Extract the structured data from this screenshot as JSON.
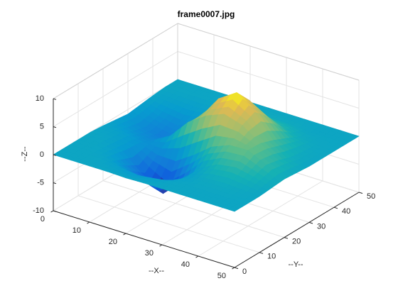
{
  "chart_data": {
    "type": "surface",
    "title": "frame0007.jpg",
    "xlabel": "--X--",
    "ylabel": "--Y--",
    "zlabel": "--Z--",
    "x": [
      0,
      5,
      10,
      15,
      20,
      25,
      30,
      35,
      40,
      45,
      50
    ],
    "y": [
      0,
      5,
      10,
      15,
      20,
      25,
      30,
      35,
      40,
      45,
      50
    ],
    "z": [
      [
        0,
        0,
        0,
        0,
        -0.1,
        0,
        0,
        0,
        0,
        0,
        0
      ],
      [
        0,
        0,
        -0.1,
        -0.6,
        -1.0,
        -0.6,
        -0.1,
        0,
        0,
        0,
        0
      ],
      [
        0,
        0,
        -0.6,
        -2.6,
        -4.2,
        -2.6,
        -0.6,
        0.2,
        0.4,
        0.2,
        0
      ],
      [
        0,
        -0.2,
        -1.1,
        -4.3,
        -6.9,
        -3.9,
        -0.4,
        1.3,
        1.8,
        1.1,
        0.2
      ],
      [
        -0.2,
        -0.5,
        -1.3,
        -2.4,
        -2.5,
        -0.4,
        2.1,
        3.4,
        3.5,
        1.9,
        0.4
      ],
      [
        -0.5,
        -1.5,
        -2.1,
        -0.4,
        3.1,
        5.3,
        6.6,
        5.6,
        3.4,
        1.4,
        0.2
      ],
      [
        -0.8,
        -2.1,
        -2.9,
        -1.1,
        2.7,
        7.0,
        9.1,
        6.6,
        2.6,
        0.6,
        0
      ],
      [
        -0.5,
        -1.5,
        -2.1,
        -1.2,
        1.2,
        4.5,
        6.4,
        4.5,
        1.6,
        0.3,
        0
      ],
      [
        -0.2,
        -0.5,
        -0.8,
        -0.4,
        0.3,
        1.6,
        2.2,
        1.6,
        0.5,
        0.1,
        0
      ],
      [
        0,
        -0.1,
        -0.1,
        -0.1,
        0,
        0.3,
        0.4,
        0.3,
        0,
        0,
        0
      ],
      [
        0,
        0,
        0,
        0,
        0,
        0,
        0,
        0,
        0,
        0,
        0
      ]
    ],
    "xlim": [
      0,
      50
    ],
    "ylim": [
      0,
      50
    ],
    "zlim": [
      -10,
      10
    ],
    "xticks": [
      0,
      10,
      20,
      30,
      40,
      50
    ],
    "yticks": [
      0,
      10,
      20,
      30,
      40,
      50
    ],
    "zticks": [
      -10,
      -5,
      0,
      5,
      10
    ],
    "grid": true,
    "colormap": "parula"
  }
}
